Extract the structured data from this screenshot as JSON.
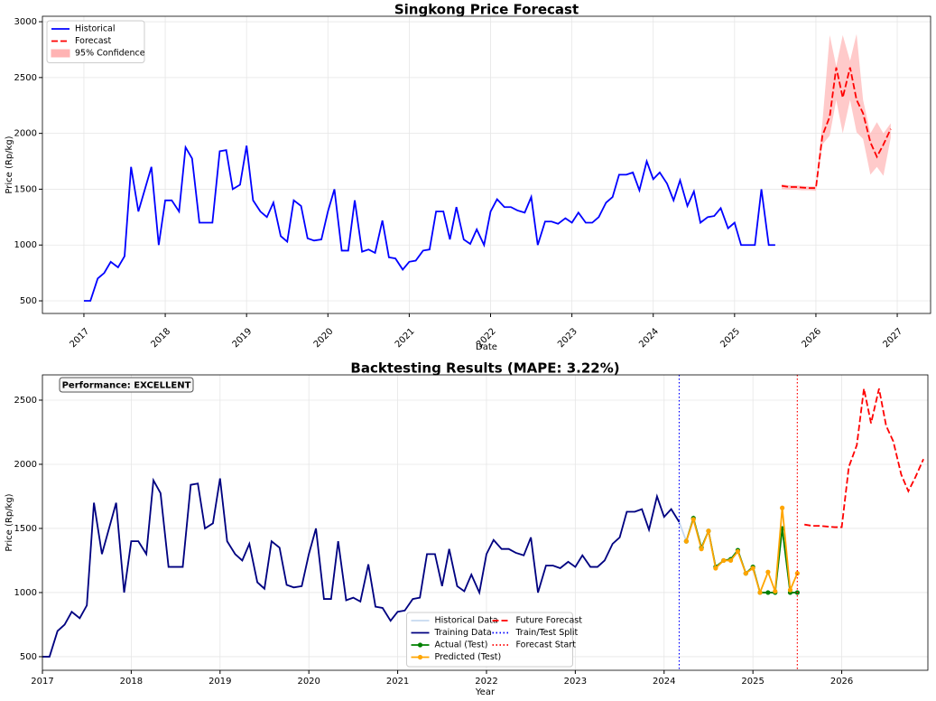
{
  "chart_data": [
    {
      "type": "line",
      "title": "Singkong Price Forecast",
      "xlabel": "Date",
      "ylabel": "Price (Rp/kg)",
      "xlim": [
        2016.49,
        2027.41
      ],
      "ylim": [
        387,
        3049
      ],
      "xticks": [
        2017,
        2018,
        2019,
        2020,
        2021,
        2022,
        2023,
        2024,
        2025,
        2026,
        2027
      ],
      "xtick_rotation": 45,
      "yticks": [
        500,
        1000,
        1500,
        2000,
        2500,
        3000
      ],
      "grid": true,
      "legend": "upper left",
      "legend_columns": 1,
      "series": [
        {
          "type": "line",
          "name": "Historical",
          "color": "#0000ff",
          "linestyle": "solid",
          "x": [
            2017.0,
            2017.08,
            2017.17,
            2017.25,
            2017.33,
            2017.42,
            2017.5,
            2017.58,
            2017.67,
            2017.75,
            2017.83,
            2017.92,
            2018.0,
            2018.08,
            2018.17,
            2018.25,
            2018.33,
            2018.42,
            2018.5,
            2018.58,
            2018.67,
            2018.75,
            2018.83,
            2018.92,
            2019.0,
            2019.08,
            2019.17,
            2019.25,
            2019.33,
            2019.42,
            2019.5,
            2019.58,
            2019.67,
            2019.75,
            2019.83,
            2019.92,
            2020.0,
            2020.08,
            2020.17,
            2020.25,
            2020.33,
            2020.42,
            2020.5,
            2020.58,
            2020.67,
            2020.75,
            2020.83,
            2020.92,
            2021.0,
            2021.08,
            2021.17,
            2021.25,
            2021.33,
            2021.42,
            2021.5,
            2021.58,
            2021.67,
            2021.75,
            2021.83,
            2021.92,
            2022.0,
            2022.08,
            2022.17,
            2022.25,
            2022.33,
            2022.42,
            2022.5,
            2022.58,
            2022.67,
            2022.75,
            2022.83,
            2022.92,
            2023.0,
            2023.08,
            2023.17,
            2023.25,
            2023.33,
            2023.42,
            2023.5,
            2023.58,
            2023.67,
            2023.75,
            2023.83,
            2023.92,
            2024.0,
            2024.08,
            2024.17,
            2024.25,
            2024.33,
            2024.42,
            2024.5,
            2024.58,
            2024.67,
            2024.75,
            2024.83,
            2024.92,
            2025.0,
            2025.08,
            2025.17,
            2025.25,
            2025.33,
            2025.42,
            2025.5
          ],
          "values": [
            500,
            500,
            700,
            750,
            850,
            800,
            900,
            1700,
            1300,
            1500,
            1700,
            1000,
            1400,
            1400,
            1300,
            1875,
            1775,
            1200,
            1200,
            1200,
            1840,
            1850,
            1500,
            1540,
            1890,
            1400,
            1300,
            1250,
            1380,
            1080,
            1030,
            1400,
            1350,
            1060,
            1040,
            1050,
            1300,
            1500,
            950,
            950,
            1400,
            940,
            960,
            930,
            1220,
            890,
            880,
            780,
            850,
            860,
            950,
            960,
            1300,
            1300,
            1050,
            1340,
            1050,
            1010,
            1140,
            1000,
            1300,
            1410,
            1340,
            1340,
            1310,
            1290,
            1430,
            1000,
            1210,
            1210,
            1190,
            1240,
            1200,
            1290,
            1200,
            1200,
            1250,
            1380,
            1430,
            1630,
            1630,
            1650,
            1490,
            1750,
            1590,
            1650,
            1550,
            1400,
            1580,
            1350,
            1480,
            1200,
            1250,
            1260,
            1330,
            1150,
            1200,
            1000,
            1000,
            1000,
            1500,
            1000,
            1000
          ]
        },
        {
          "type": "line",
          "name": "Forecast",
          "color": "#ff0000",
          "linestyle": "dashed",
          "x": [
            2025.58,
            2025.67,
            2025.75,
            2025.83,
            2025.92,
            2026.0,
            2026.08,
            2026.17,
            2026.25,
            2026.33,
            2026.42,
            2026.5,
            2026.58,
            2026.67,
            2026.75,
            2026.83,
            2026.92
          ],
          "values": [
            1530,
            1520,
            1520,
            1515,
            1510,
            1510,
            1980,
            2150,
            2590,
            2320,
            2590,
            2300,
            2180,
            1920,
            1790,
            1900,
            2040
          ]
        },
        {
          "type": "band",
          "name": "95% Confidence",
          "color": "#ffb3b3",
          "x": [
            2025.58,
            2025.67,
            2025.75,
            2025.83,
            2025.92,
            2026.0,
            2026.08,
            2026.17,
            2026.25,
            2026.33,
            2026.42,
            2026.5,
            2026.58,
            2026.67,
            2026.75,
            2026.83,
            2026.92
          ],
          "lower": [
            1500,
            1495,
            1495,
            1490,
            1490,
            1485,
            1900,
            1980,
            2300,
            2000,
            2300,
            2010,
            1950,
            1630,
            1700,
            1620,
            1960
          ],
          "upper": [
            1545,
            1535,
            1535,
            1530,
            1525,
            1525,
            2100,
            2880,
            2600,
            2880,
            2650,
            2890,
            2300,
            2000,
            2100,
            2000,
            2090
          ]
        }
      ]
    },
    {
      "type": "line",
      "title": "Backtesting Results (MAPE: 3.22%)",
      "xlabel": "Year",
      "ylabel": "Price (Rp/kg)",
      "xlim": [
        2017,
        2026.97
      ],
      "ylim": [
        394,
        2697
      ],
      "xticks": [
        2017,
        2018,
        2019,
        2020,
        2021,
        2022,
        2023,
        2024,
        2025,
        2026
      ],
      "xtick_rotation": 0,
      "yticks": [
        500,
        1000,
        1500,
        2000,
        2500
      ],
      "grid": true,
      "legend": "lower center",
      "legend_columns": 2,
      "annotation": "Performance: EXCELLENT",
      "series": [
        {
          "type": "line",
          "name": "Historical Data",
          "color": "#c6d9f0",
          "linestyle": "solid",
          "x": [
            2017.0,
            2017.08,
            2017.17,
            2017.25,
            2017.33,
            2017.42,
            2017.5,
            2017.58,
            2017.67,
            2017.75,
            2017.83,
            2017.92,
            2018.0,
            2018.08,
            2018.17,
            2018.25,
            2018.33,
            2018.42,
            2018.5,
            2018.58,
            2018.67,
            2018.75,
            2018.83,
            2018.92,
            2019.0,
            2019.08,
            2019.17,
            2019.25,
            2019.33,
            2019.42,
            2019.5,
            2019.58,
            2019.67,
            2019.75,
            2019.83,
            2019.92,
            2020.0,
            2020.08,
            2020.17,
            2020.25,
            2020.33,
            2020.42,
            2020.5,
            2020.58,
            2020.67,
            2020.75,
            2020.83,
            2020.92,
            2021.0,
            2021.08,
            2021.17,
            2021.25,
            2021.33,
            2021.42,
            2021.5,
            2021.58,
            2021.67,
            2021.75,
            2021.83,
            2021.92,
            2022.0,
            2022.08,
            2022.17,
            2022.25,
            2022.33,
            2022.42,
            2022.5,
            2022.58,
            2022.67,
            2022.75,
            2022.83,
            2022.92,
            2023.0,
            2023.08,
            2023.17,
            2023.25,
            2023.33,
            2023.42,
            2023.5,
            2023.58,
            2023.67,
            2023.75,
            2023.83,
            2023.92,
            2024.0,
            2024.08,
            2024.17,
            2024.25,
            2024.33,
            2024.42,
            2024.5,
            2024.58,
            2024.67,
            2024.75,
            2024.83,
            2024.92,
            2025.0,
            2025.08,
            2025.17,
            2025.25,
            2025.33,
            2025.42,
            2025.5
          ],
          "values": [
            500,
            500,
            700,
            750,
            850,
            800,
            900,
            1700,
            1300,
            1500,
            1700,
            1000,
            1400,
            1400,
            1300,
            1875,
            1775,
            1200,
            1200,
            1200,
            1840,
            1850,
            1500,
            1540,
            1890,
            1400,
            1300,
            1250,
            1380,
            1080,
            1030,
            1400,
            1350,
            1060,
            1040,
            1050,
            1300,
            1500,
            950,
            950,
            1400,
            940,
            960,
            930,
            1220,
            890,
            880,
            780,
            850,
            860,
            950,
            960,
            1300,
            1300,
            1050,
            1340,
            1050,
            1010,
            1140,
            1000,
            1300,
            1410,
            1340,
            1340,
            1310,
            1290,
            1430,
            1000,
            1210,
            1210,
            1190,
            1240,
            1200,
            1290,
            1200,
            1200,
            1250,
            1380,
            1430,
            1630,
            1630,
            1650,
            1490,
            1750,
            1590,
            1650,
            1550,
            1400,
            1580,
            1350,
            1480,
            1200,
            1250,
            1260,
            1330,
            1150,
            1200,
            1000,
            1000,
            1000,
            1500,
            1000,
            1000
          ]
        },
        {
          "type": "line",
          "name": "Training Data",
          "color": "#000080",
          "linestyle": "solid",
          "x": [
            2017.0,
            2017.08,
            2017.17,
            2017.25,
            2017.33,
            2017.42,
            2017.5,
            2017.58,
            2017.67,
            2017.75,
            2017.83,
            2017.92,
            2018.0,
            2018.08,
            2018.17,
            2018.25,
            2018.33,
            2018.42,
            2018.5,
            2018.58,
            2018.67,
            2018.75,
            2018.83,
            2018.92,
            2019.0,
            2019.08,
            2019.17,
            2019.25,
            2019.33,
            2019.42,
            2019.5,
            2019.58,
            2019.67,
            2019.75,
            2019.83,
            2019.92,
            2020.0,
            2020.08,
            2020.17,
            2020.25,
            2020.33,
            2020.42,
            2020.5,
            2020.58,
            2020.67,
            2020.75,
            2020.83,
            2020.92,
            2021.0,
            2021.08,
            2021.17,
            2021.25,
            2021.33,
            2021.42,
            2021.5,
            2021.58,
            2021.67,
            2021.75,
            2021.83,
            2021.92,
            2022.0,
            2022.08,
            2022.17,
            2022.25,
            2022.33,
            2022.42,
            2022.5,
            2022.58,
            2022.67,
            2022.75,
            2022.83,
            2022.92,
            2023.0,
            2023.08,
            2023.17,
            2023.25,
            2023.33,
            2023.42,
            2023.5,
            2023.58,
            2023.67,
            2023.75,
            2023.83,
            2023.92,
            2024.0,
            2024.08,
            2024.17
          ],
          "values": [
            500,
            500,
            700,
            750,
            850,
            800,
            900,
            1700,
            1300,
            1500,
            1700,
            1000,
            1400,
            1400,
            1300,
            1875,
            1775,
            1200,
            1200,
            1200,
            1840,
            1850,
            1500,
            1540,
            1890,
            1400,
            1300,
            1250,
            1380,
            1080,
            1030,
            1400,
            1350,
            1060,
            1040,
            1050,
            1300,
            1500,
            950,
            950,
            1400,
            940,
            960,
            930,
            1220,
            890,
            880,
            780,
            850,
            860,
            950,
            960,
            1300,
            1300,
            1050,
            1340,
            1050,
            1010,
            1140,
            1000,
            1300,
            1410,
            1340,
            1340,
            1310,
            1290,
            1430,
            1000,
            1210,
            1210,
            1190,
            1240,
            1200,
            1290,
            1200,
            1200,
            1250,
            1380,
            1430,
            1630,
            1630,
            1650,
            1490,
            1750,
            1590,
            1650,
            1550
          ]
        },
        {
          "type": "line",
          "name": "Actual (Test)",
          "color": "#008000",
          "linestyle": "solid",
          "marker": true,
          "x": [
            2024.25,
            2024.33,
            2024.42,
            2024.5,
            2024.58,
            2024.67,
            2024.75,
            2024.83,
            2024.92,
            2025.0,
            2025.08,
            2025.17,
            2025.25,
            2025.33,
            2025.42,
            2025.5
          ],
          "values": [
            1400,
            1580,
            1350,
            1480,
            1200,
            1250,
            1260,
            1330,
            1150,
            1200,
            1000,
            1000,
            1000,
            1500,
            1000,
            1000
          ]
        },
        {
          "type": "line",
          "name": "Predicted (Test)",
          "color": "#ffa500",
          "linestyle": "solid",
          "marker": true,
          "x": [
            2024.25,
            2024.33,
            2024.42,
            2024.5,
            2024.58,
            2024.67,
            2024.75,
            2024.83,
            2024.92,
            2025.0,
            2025.08,
            2025.17,
            2025.25,
            2025.33,
            2025.42,
            2025.5
          ],
          "values": [
            1400,
            1570,
            1340,
            1480,
            1190,
            1250,
            1250,
            1320,
            1150,
            1190,
            1000,
            1160,
            1010,
            1660,
            1020,
            1150
          ]
        },
        {
          "type": "line",
          "name": "Future Forecast",
          "color": "#ff0000",
          "linestyle": "dashed",
          "x": [
            2025.58,
            2025.67,
            2025.75,
            2025.83,
            2025.92,
            2026.0,
            2026.08,
            2026.17,
            2026.25,
            2026.33,
            2026.42,
            2026.5,
            2026.58,
            2026.67,
            2026.75,
            2026.83,
            2026.92
          ],
          "values": [
            1530,
            1520,
            1520,
            1515,
            1510,
            1510,
            1980,
            2150,
            2590,
            2320,
            2590,
            2300,
            2180,
            1920,
            1790,
            1900,
            2040
          ]
        },
        {
          "type": "vline",
          "name": "Train/Test Split",
          "color": "#0000ff",
          "linestyle": "dotted",
          "x": 2024.17
        },
        {
          "type": "vline",
          "name": "Forecast Start",
          "color": "#ff0000",
          "linestyle": "dotted",
          "x": 2025.5
        }
      ]
    }
  ]
}
